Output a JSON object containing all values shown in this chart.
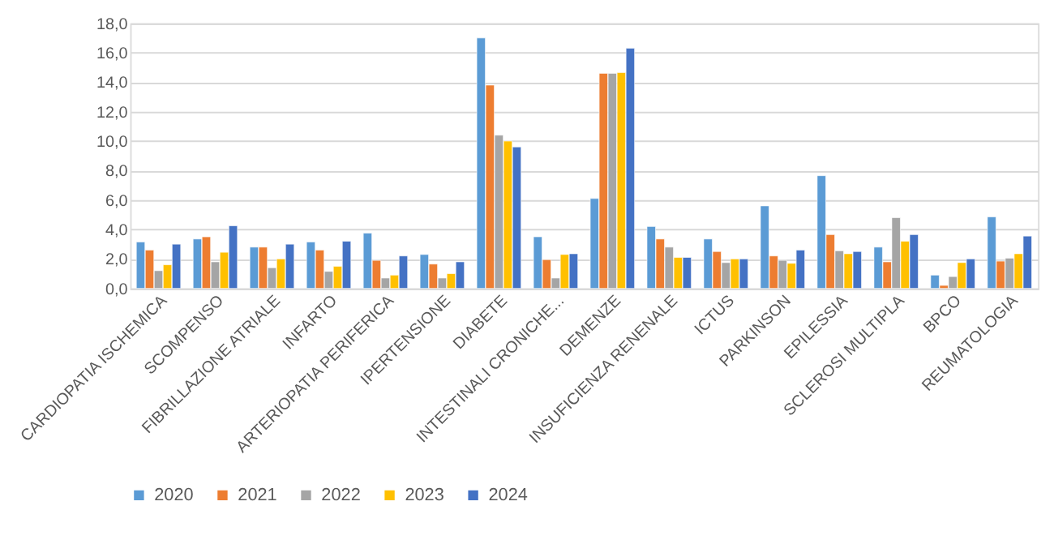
{
  "chart_data": {
    "type": "bar",
    "categories": [
      "CARDIOPATIA ISCHEMICA",
      "SCOMPENSO",
      "FIBRILLAZIONE ATRIALE",
      "INFARTO",
      "ARTERIOPATIA PERIFERICA",
      "IPERTENSIONE",
      "DIABETE",
      "INTESTINALI CRONICHE...",
      "DEMENZE",
      "INSUFICIENZA RENENALE",
      "ICTUS",
      "PARKINSON",
      "EPILESSIA",
      "SCLEROSI MULTIPLA",
      "BPCO",
      "REUMATOLOGIA"
    ],
    "series": [
      {
        "name": "2020",
        "color": "#5b9bd5",
        "values": [
          3.15,
          3.35,
          2.8,
          3.15,
          3.75,
          2.3,
          17.0,
          3.5,
          6.1,
          4.2,
          3.35,
          5.6,
          7.65,
          2.8,
          0.9,
          4.85
        ]
      },
      {
        "name": "2021",
        "color": "#ed7d31",
        "values": [
          2.6,
          3.5,
          2.8,
          2.6,
          1.9,
          1.65,
          13.8,
          1.95,
          14.6,
          3.35,
          2.5,
          2.2,
          3.65,
          1.8,
          0.2,
          1.85
        ]
      },
      {
        "name": "2022",
        "color": "#a5a5a5",
        "values": [
          1.2,
          1.8,
          1.4,
          1.15,
          0.7,
          0.7,
          10.4,
          0.7,
          14.6,
          2.8,
          1.75,
          1.9,
          2.55,
          4.8,
          0.8,
          2.05
        ]
      },
      {
        "name": "2023",
        "color": "#ffc000",
        "values": [
          1.6,
          2.45,
          2.0,
          1.5,
          0.9,
          1.0,
          10.0,
          2.3,
          14.65,
          2.1,
          2.0,
          1.7,
          2.35,
          3.2,
          1.75,
          2.35
        ]
      },
      {
        "name": "2024",
        "color": "#4472c4",
        "values": [
          3.0,
          4.25,
          3.0,
          3.2,
          2.2,
          1.8,
          9.6,
          2.35,
          16.3,
          2.1,
          2.0,
          2.6,
          2.5,
          3.65,
          2.0,
          3.55
        ]
      }
    ],
    "ylim": [
      0,
      18
    ],
    "yticks": [
      {
        "value": 0,
        "label": "0,0"
      },
      {
        "value": 2,
        "label": "2,0"
      },
      {
        "value": 4,
        "label": "4,0"
      },
      {
        "value": 6,
        "label": "6,0"
      },
      {
        "value": 8,
        "label": "8,0"
      },
      {
        "value": 10,
        "label": "10,0"
      },
      {
        "value": 12,
        "label": "12,0"
      },
      {
        "value": 14,
        "label": "14,0"
      },
      {
        "value": 16,
        "label": "16,0"
      },
      {
        "value": 18,
        "label": "18,0"
      }
    ],
    "grid": "y",
    "legend": "bottom"
  }
}
